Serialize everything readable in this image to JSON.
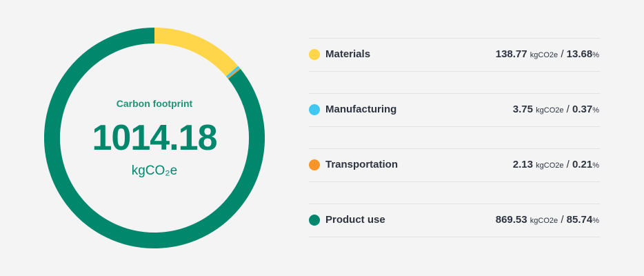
{
  "center": {
    "title": "Carbon footprint",
    "value": "1014.18",
    "unit": "kgCO₂e"
  },
  "legend": [
    {
      "label": "Materials",
      "value": "138.77",
      "unit": "kgCO2e",
      "sep": "/",
      "percent": "13.68",
      "pct_sign": "%",
      "color": "#ffd54a"
    },
    {
      "label": "Manufacturing",
      "value": "3.75",
      "unit": "kgCO2e",
      "sep": "/",
      "percent": "0.37",
      "pct_sign": "%",
      "color": "#40c8f0"
    },
    {
      "label": "Transportation",
      "value": "2.13",
      "unit": "kgCO2e",
      "sep": "/",
      "percent": "0.21",
      "pct_sign": "%",
      "color": "#f7952a"
    },
    {
      "label": "Product use",
      "value": "869.53",
      "unit": "kgCO2e",
      "sep": "/",
      "percent": "85.74",
      "pct_sign": "%",
      "color": "#00876c"
    }
  ],
  "chart_data": {
    "type": "pie",
    "variant": "donut",
    "title": "Carbon footprint",
    "total": 1014.18,
    "unit": "kgCO2e",
    "categories": [
      "Materials",
      "Manufacturing",
      "Transportation",
      "Product use"
    ],
    "values": [
      138.77,
      3.75,
      2.13,
      869.53
    ],
    "percentages": [
      13.68,
      0.37,
      0.21,
      85.74
    ],
    "colors": [
      "#ffd54a",
      "#40c8f0",
      "#f7952a",
      "#00876c"
    ],
    "start_angle": "top, clockwise",
    "legend_position": "right"
  }
}
